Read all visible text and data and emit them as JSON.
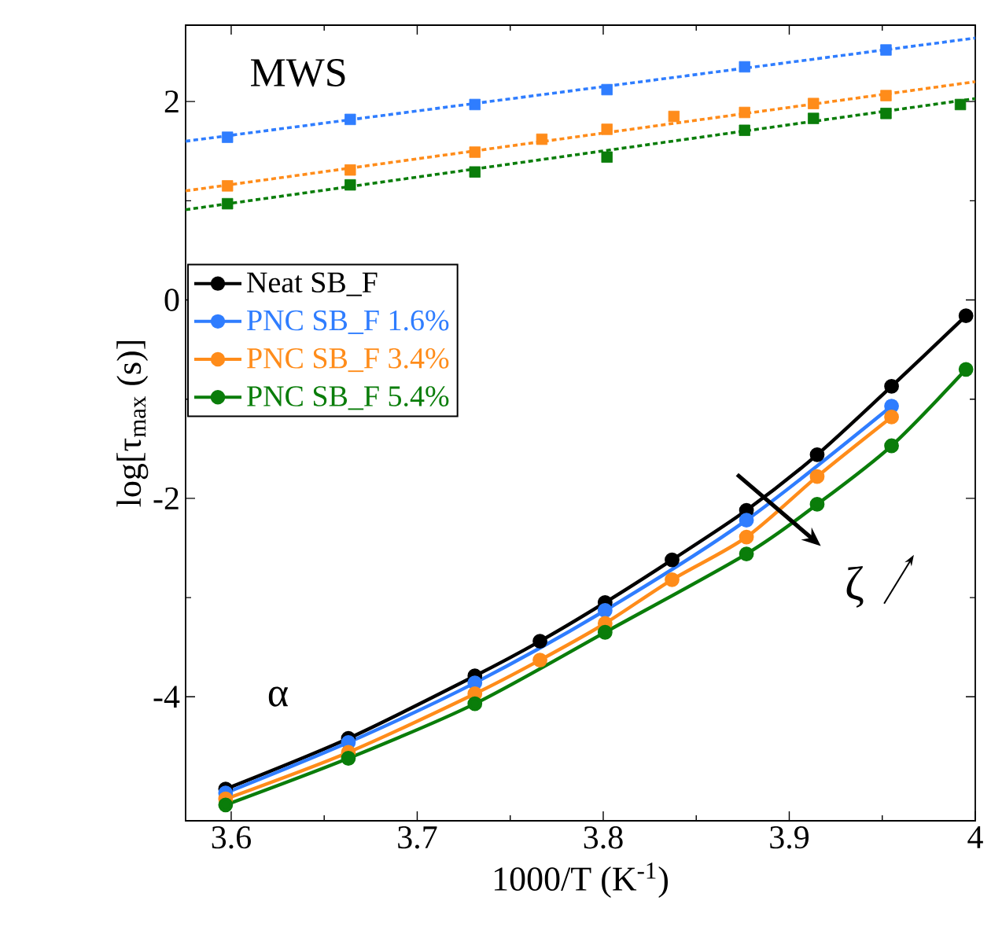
{
  "chart_data": {
    "type": "line",
    "xlabel": "1000/T (K$^{-1}$)",
    "ylabel": "log[τ$_{max}$ (s)]",
    "xlim": [
      3.5755,
      4.0
    ],
    "ylim": [
      -5.25,
      2.77
    ],
    "xticks": [
      3.6,
      3.7,
      3.8,
      3.9,
      4
    ],
    "yticks": [
      -4,
      -2,
      0,
      2
    ],
    "legend": "left",
    "grid": false,
    "series": [
      {
        "name": "Neat SB_F",
        "color": "#000000",
        "marker": "circle",
        "x": [
          3.597,
          3.663,
          3.731,
          3.766,
          3.801,
          3.837,
          3.877,
          3.915,
          3.955,
          3.995
        ],
        "values": [
          -4.93,
          -4.42,
          -3.79,
          -3.44,
          -3.05,
          -2.62,
          -2.12,
          -1.56,
          -0.87,
          -0.16
        ]
      },
      {
        "name": "PNC SB_F 1.6%",
        "color": "#2f7dff",
        "marker": "circle",
        "x": [
          3.597,
          3.663,
          3.731,
          3.801,
          3.877,
          3.955
        ],
        "values": [
          -4.97,
          -4.46,
          -3.86,
          -3.13,
          -2.22,
          -1.07
        ]
      },
      {
        "name": "PNC SB_F 3.4%",
        "color": "#ff8c1a",
        "marker": "circle",
        "x": [
          3.597,
          3.663,
          3.731,
          3.766,
          3.801,
          3.837,
          3.877,
          3.915,
          3.955
        ],
        "values": [
          -5.03,
          -4.56,
          -3.97,
          -3.63,
          -3.26,
          -2.82,
          -2.39,
          -1.78,
          -1.18
        ]
      },
      {
        "name": "PNC SB_F 5.4%",
        "color": "#0a7d0a",
        "marker": "circle",
        "x": [
          3.597,
          3.663,
          3.731,
          3.801,
          3.877,
          3.915,
          3.955,
          3.995
        ],
        "values": [
          -5.09,
          -4.62,
          -4.07,
          -3.35,
          -2.56,
          -2.06,
          -1.47,
          -0.7
        ]
      },
      {
        "type": "scatter",
        "color": "#2f7dff",
        "marker": "square",
        "x": [
          3.598,
          3.664,
          3.731,
          3.802,
          3.876,
          3.952
        ],
        "values": [
          1.64,
          1.82,
          1.97,
          2.12,
          2.35,
          2.52
        ]
      },
      {
        "type": "scatter",
        "color": "#ff8c1a",
        "marker": "square",
        "x": [
          3.598,
          3.664,
          3.731,
          3.767,
          3.802,
          3.838,
          3.876,
          3.913,
          3.952
        ],
        "values": [
          1.15,
          1.31,
          1.49,
          1.62,
          1.72,
          1.85,
          1.89,
          1.98,
          2.06
        ]
      },
      {
        "type": "scatter",
        "color": "#0a7d0a",
        "marker": "square",
        "x": [
          3.598,
          3.664,
          3.731,
          3.802,
          3.876,
          3.913,
          3.952,
          3.992
        ],
        "values": [
          0.97,
          1.16,
          1.29,
          1.44,
          1.71,
          1.83,
          1.88,
          1.97
        ]
      },
      {
        "type": "line",
        "color": "#2f7dff",
        "marker": "none",
        "line_style": "dashed",
        "x": [
          3.5755,
          4.0
        ],
        "values": [
          1.6,
          2.64
        ]
      },
      {
        "type": "line",
        "color": "#ff8c1a",
        "marker": "none",
        "line_style": "dashed",
        "x": [
          3.5755,
          4.0
        ],
        "values": [
          1.1,
          2.2
        ]
      },
      {
        "type": "line",
        "color": "#0a7d0a",
        "marker": "none",
        "line_style": "dashed",
        "x": [
          3.5755,
          4.0
        ],
        "values": [
          0.91,
          2.03
        ]
      }
    ],
    "annotations": [
      "MWS",
      "α",
      "ζ"
    ]
  }
}
